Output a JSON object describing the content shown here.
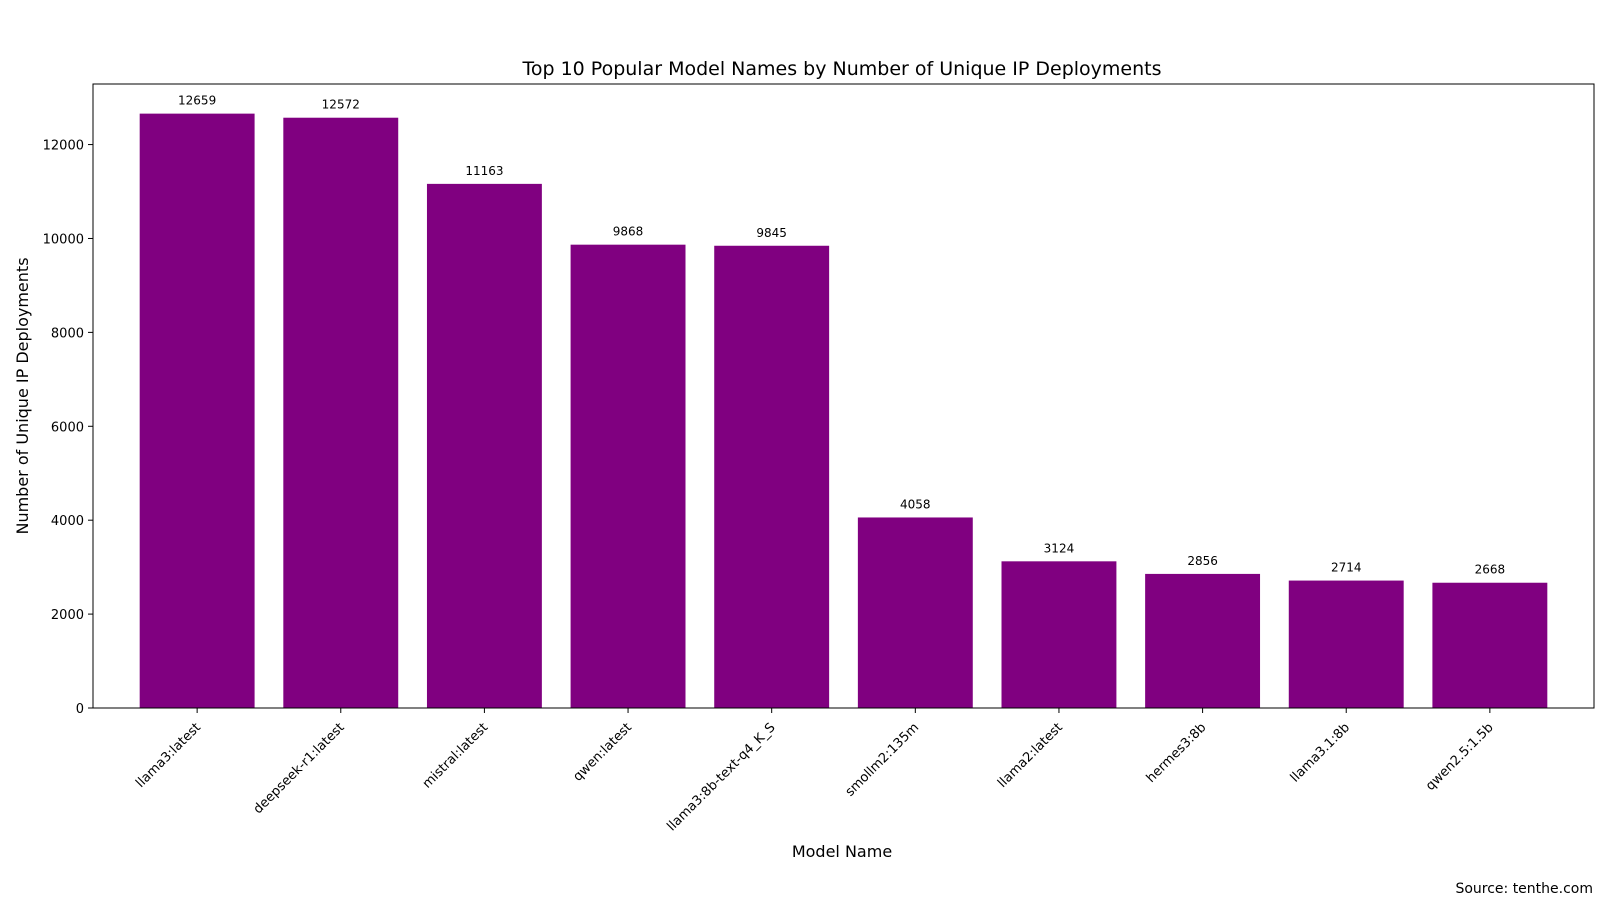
{
  "chart_data": {
    "type": "bar",
    "title": "Top 10 Popular Model Names by Number of Unique IP Deployments",
    "xlabel": "Model Name",
    "ylabel": "Number of Unique IP Deployments",
    "categories": [
      "llama3:latest",
      "deepseek-r1:latest",
      "mistral:latest",
      "qwen:latest",
      "llama3:8b-text-q4_K_S",
      "smollm2:135m",
      "llama2:latest",
      "hermes3:8b",
      "llama3.1:8b",
      "qwen2.5:1.5b"
    ],
    "values": [
      12659,
      12572,
      11163,
      9868,
      9845,
      4058,
      3124,
      2856,
      2714,
      2668
    ],
    "data_labels": [
      "12659",
      "12572",
      "11163",
      "9868",
      "9845",
      "4058",
      "3124",
      "2856",
      "2714",
      "2668"
    ],
    "ylim": [
      0,
      13290
    ],
    "yticks": [
      0,
      2000,
      4000,
      6000,
      8000,
      10000,
      12000
    ],
    "ytick_labels": [
      "0",
      "2000",
      "4000",
      "6000",
      "8000",
      "10000",
      "12000"
    ],
    "grid": false,
    "bar_color": "#800080",
    "source": "Source: tenthe.com"
  }
}
